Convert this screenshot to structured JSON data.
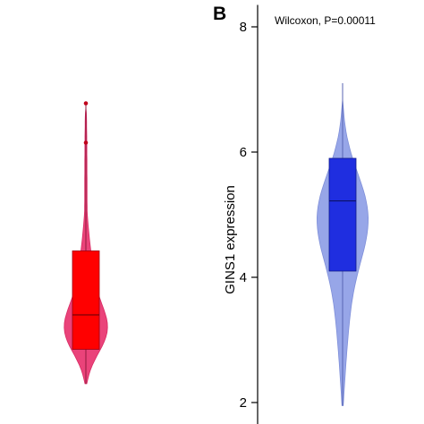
{
  "chart_data": [
    {
      "panel_label": "",
      "type": "violin",
      "violin": {
        "min": 0.2,
        "max": 5.9
      },
      "box": {
        "q1": 0.9,
        "median": 1.6,
        "q3": 2.9
      },
      "outliers": [
        5.1,
        5.9
      ],
      "colors": {
        "violin": "#e8336f",
        "box": "#ff0000",
        "outlier": "#c0001a"
      }
    },
    {
      "panel_label": "B",
      "type": "violin",
      "annotation": "Wilcoxon, P=0.00011",
      "ylabel": "GINS1 expression",
      "yticks": [
        2,
        4,
        6,
        8
      ],
      "ylim": [
        1.95,
        8.35
      ],
      "violin": {
        "min": 1.95,
        "max": 7.1
      },
      "box": {
        "q1": 4.1,
        "median": 5.22,
        "q3": 5.9
      },
      "colors": {
        "violin": "#8c9ce6",
        "box": "#1f2ee0"
      }
    }
  ]
}
